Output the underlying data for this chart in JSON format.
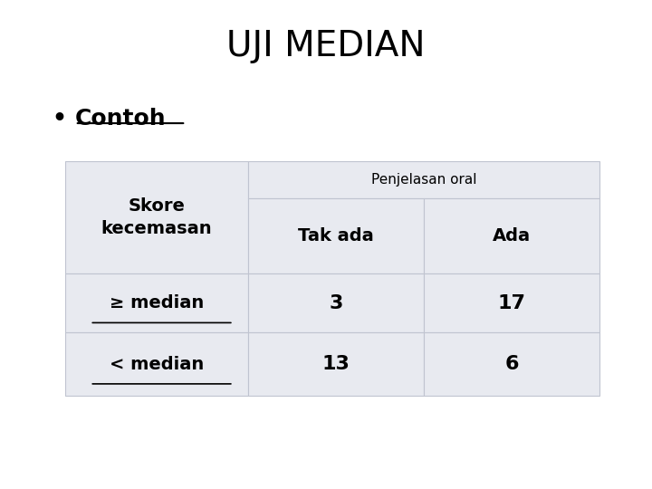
{
  "title": "UJI MEDIAN",
  "bullet_text": "Contoh",
  "table_bg_color": "#e8eaf0",
  "table_border_color": "#c0c4d0",
  "col_header_label": "Penjelasan oral",
  "col1_header": "Tak ada",
  "col2_header": "Ada",
  "background_color": "#ffffff",
  "title_fontsize": 28,
  "bullet_fontsize": 18,
  "header_fontsize": 11,
  "col_header_fontsize": 14,
  "cell_fontsize": 16
}
